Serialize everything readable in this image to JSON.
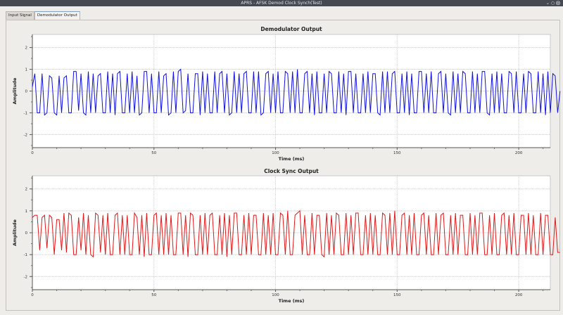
{
  "window": {
    "title": "APRS - AFSK Demod Clock Synch(Test)"
  },
  "tabs": [
    {
      "label": "Input Signal",
      "active": false
    },
    {
      "label": "Demodulator Output",
      "active": true
    }
  ],
  "chart_data": [
    {
      "type": "line",
      "title": "Demodulator Output",
      "xlabel": "Time (ms)",
      "ylabel": "Amplitude",
      "xlim": [
        0,
        213
      ],
      "ylim": [
        -2.6,
        2.6
      ],
      "xticks": [
        0,
        50,
        100,
        150,
        200
      ],
      "yticks": [
        2,
        1,
        0,
        -1,
        -2
      ],
      "grid": true,
      "color": "#1010e0",
      "x_step": 1,
      "values": [
        0.2,
        0.8,
        -1,
        -1,
        0.8,
        -1.1,
        -1,
        0.7,
        0.6,
        -1,
        -1.1,
        0.7,
        -1,
        0.6,
        0.7,
        -1,
        -1,
        0.9,
        0.9,
        -0.9,
        0.8,
        -1,
        -1.1,
        0.9,
        -1,
        0.8,
        -1,
        0.7,
        0.8,
        -1,
        -1,
        0.9,
        -1,
        0.8,
        -1.1,
        0.8,
        0.9,
        -1,
        -1,
        0.8,
        -1,
        0.9,
        -1,
        0.7,
        -1.1,
        -1,
        0.9,
        0.9,
        -1,
        0.8,
        -1,
        -1,
        0.9,
        -1,
        0.7,
        0.8,
        -1.1,
        -1,
        0.9,
        -1,
        0.9,
        1,
        -1,
        -0.9,
        0.8,
        -1,
        -1,
        0.8,
        0.8,
        -1.1,
        0.9,
        -1,
        0.8,
        -1,
        -1,
        0.9,
        -1,
        0.8,
        0.9,
        -1,
        0.8,
        -1.1,
        -1,
        0.9,
        -1,
        0.8,
        -1,
        0.8,
        0.9,
        -1,
        -1,
        0.9,
        -1,
        0.9,
        -1.1,
        -1,
        0.8,
        0.9,
        -1,
        0.8,
        -1,
        0.9,
        -1,
        -1,
        0.9,
        0.8,
        -1,
        0.9,
        -1,
        1,
        -1,
        -1,
        0.8,
        0.9,
        -1,
        0.8,
        -1.1,
        0.9,
        -1,
        -1,
        0.8,
        -1,
        0.9,
        0.8,
        -1,
        -1,
        0.9,
        -1,
        0.8,
        -1.1,
        0.9,
        0.9,
        -1,
        0.8,
        -1,
        -1,
        0.8,
        -1,
        0.9,
        -1,
        0.8,
        0.8,
        -1,
        -1.1,
        0.9,
        -1,
        0.9,
        -1,
        0.8,
        0.9,
        -1,
        -1,
        0.8,
        -1,
        0.9,
        -1.1,
        0.8,
        -1,
        -1,
        0.9,
        0.9,
        -1,
        0.8,
        -1,
        0.9,
        -1,
        -1,
        0.8,
        0.9,
        -1,
        0.8,
        -1,
        -1.1,
        0.9,
        -1,
        0.8,
        -1,
        0.9,
        0.8,
        -1,
        -1,
        0.9,
        -1,
        0.8,
        -1,
        0.9,
        0.9,
        -1,
        -1.1,
        0.8,
        -1,
        0.9,
        -1,
        0.8,
        -1,
        -1,
        0.9,
        0.8,
        -1,
        0.9,
        -1,
        -1,
        0.8,
        -1,
        0.9,
        0.8,
        -1,
        -1,
        0.9,
        -1,
        0.8,
        -1.1,
        0.9,
        -1,
        0.8,
        0.7,
        -1,
        0
      ]
    },
    {
      "type": "line",
      "title": "Clock Sync Output",
      "xlabel": "Time (ms)",
      "ylabel": "Amplitude",
      "xlim": [
        0,
        213
      ],
      "ylim": [
        -2.6,
        2.6
      ],
      "xticks": [
        0,
        50,
        100,
        150,
        200
      ],
      "yticks": [
        2,
        1,
        0,
        -1,
        -2
      ],
      "grid": true,
      "color": "#e01818",
      "x_step": 1,
      "values": [
        0.7,
        0.8,
        0.8,
        -0.8,
        0.7,
        0.8,
        -0.7,
        0.8,
        0.7,
        -1,
        0.6,
        0.6,
        -0.8,
        0.9,
        -0.9,
        0.9,
        0.8,
        -1,
        -1,
        0.7,
        -0.8,
        0.9,
        -1,
        0.8,
        -1,
        -1.1,
        0.9,
        0.8,
        -0.9,
        0.8,
        -1,
        0.9,
        -1,
        -1,
        0.8,
        0.9,
        -1,
        0.8,
        -1,
        0.8,
        -1,
        -1,
        0.9,
        0.7,
        -1,
        0.8,
        -1.1,
        0.9,
        -1,
        -1,
        0.8,
        0.9,
        -1,
        0.8,
        -1,
        0.9,
        -1,
        0.8,
        -1,
        -1,
        0.9,
        0.9,
        -1,
        0.8,
        -1.1,
        0.9,
        0.8,
        -1,
        -1,
        0.8,
        -1,
        0.9,
        -1,
        0.8,
        0.9,
        -1,
        -1,
        0.8,
        -1,
        0.9,
        -1.1,
        0.8,
        -1,
        0.9,
        0.9,
        -1,
        -1,
        0.8,
        -1,
        0.9,
        -1,
        0.8,
        0.8,
        -1,
        -1,
        0.9,
        -1,
        0.8,
        -1,
        0.9,
        -1,
        -1,
        0.9,
        0.8,
        -1,
        1,
        -1,
        -1,
        0.8,
        0.9,
        1,
        -1,
        0.8,
        -1,
        -1,
        0.9,
        -1,
        0.8,
        0.8,
        -1,
        -1.1,
        0.9,
        -1,
        0.8,
        -1,
        0.9,
        0.8,
        -1,
        -1,
        0.9,
        -1,
        0.8,
        -1,
        0.9,
        0.9,
        -1,
        -1,
        0.8,
        -1,
        0.9,
        -1,
        0.8,
        -1,
        -1,
        0.9,
        0.8,
        -1,
        0.9,
        -1,
        1,
        -1,
        -1,
        0.8,
        0.9,
        -1,
        0.8,
        -1,
        0.9,
        -1,
        -1,
        0.8,
        0.9,
        -1,
        0.8,
        -1,
        -1,
        0.9,
        -1,
        0.8,
        0.9,
        -1,
        -1,
        0.8,
        -1,
        0.9,
        -1,
        0.8,
        0.8,
        -1,
        -1,
        0.9,
        -1,
        0.8,
        -1,
        0.9,
        0.9,
        -1,
        -1,
        0.8,
        -1,
        0.9,
        -1,
        -1,
        0.8,
        0.9,
        -1,
        0.8,
        -1,
        0.9,
        -1,
        -1,
        0.8,
        0.8,
        -1,
        0.9,
        -1,
        0.8,
        -1,
        -1,
        0.9,
        -1,
        0.8,
        0.8,
        -1,
        -1,
        0.7,
        -0.9,
        -0.9
      ]
    }
  ]
}
